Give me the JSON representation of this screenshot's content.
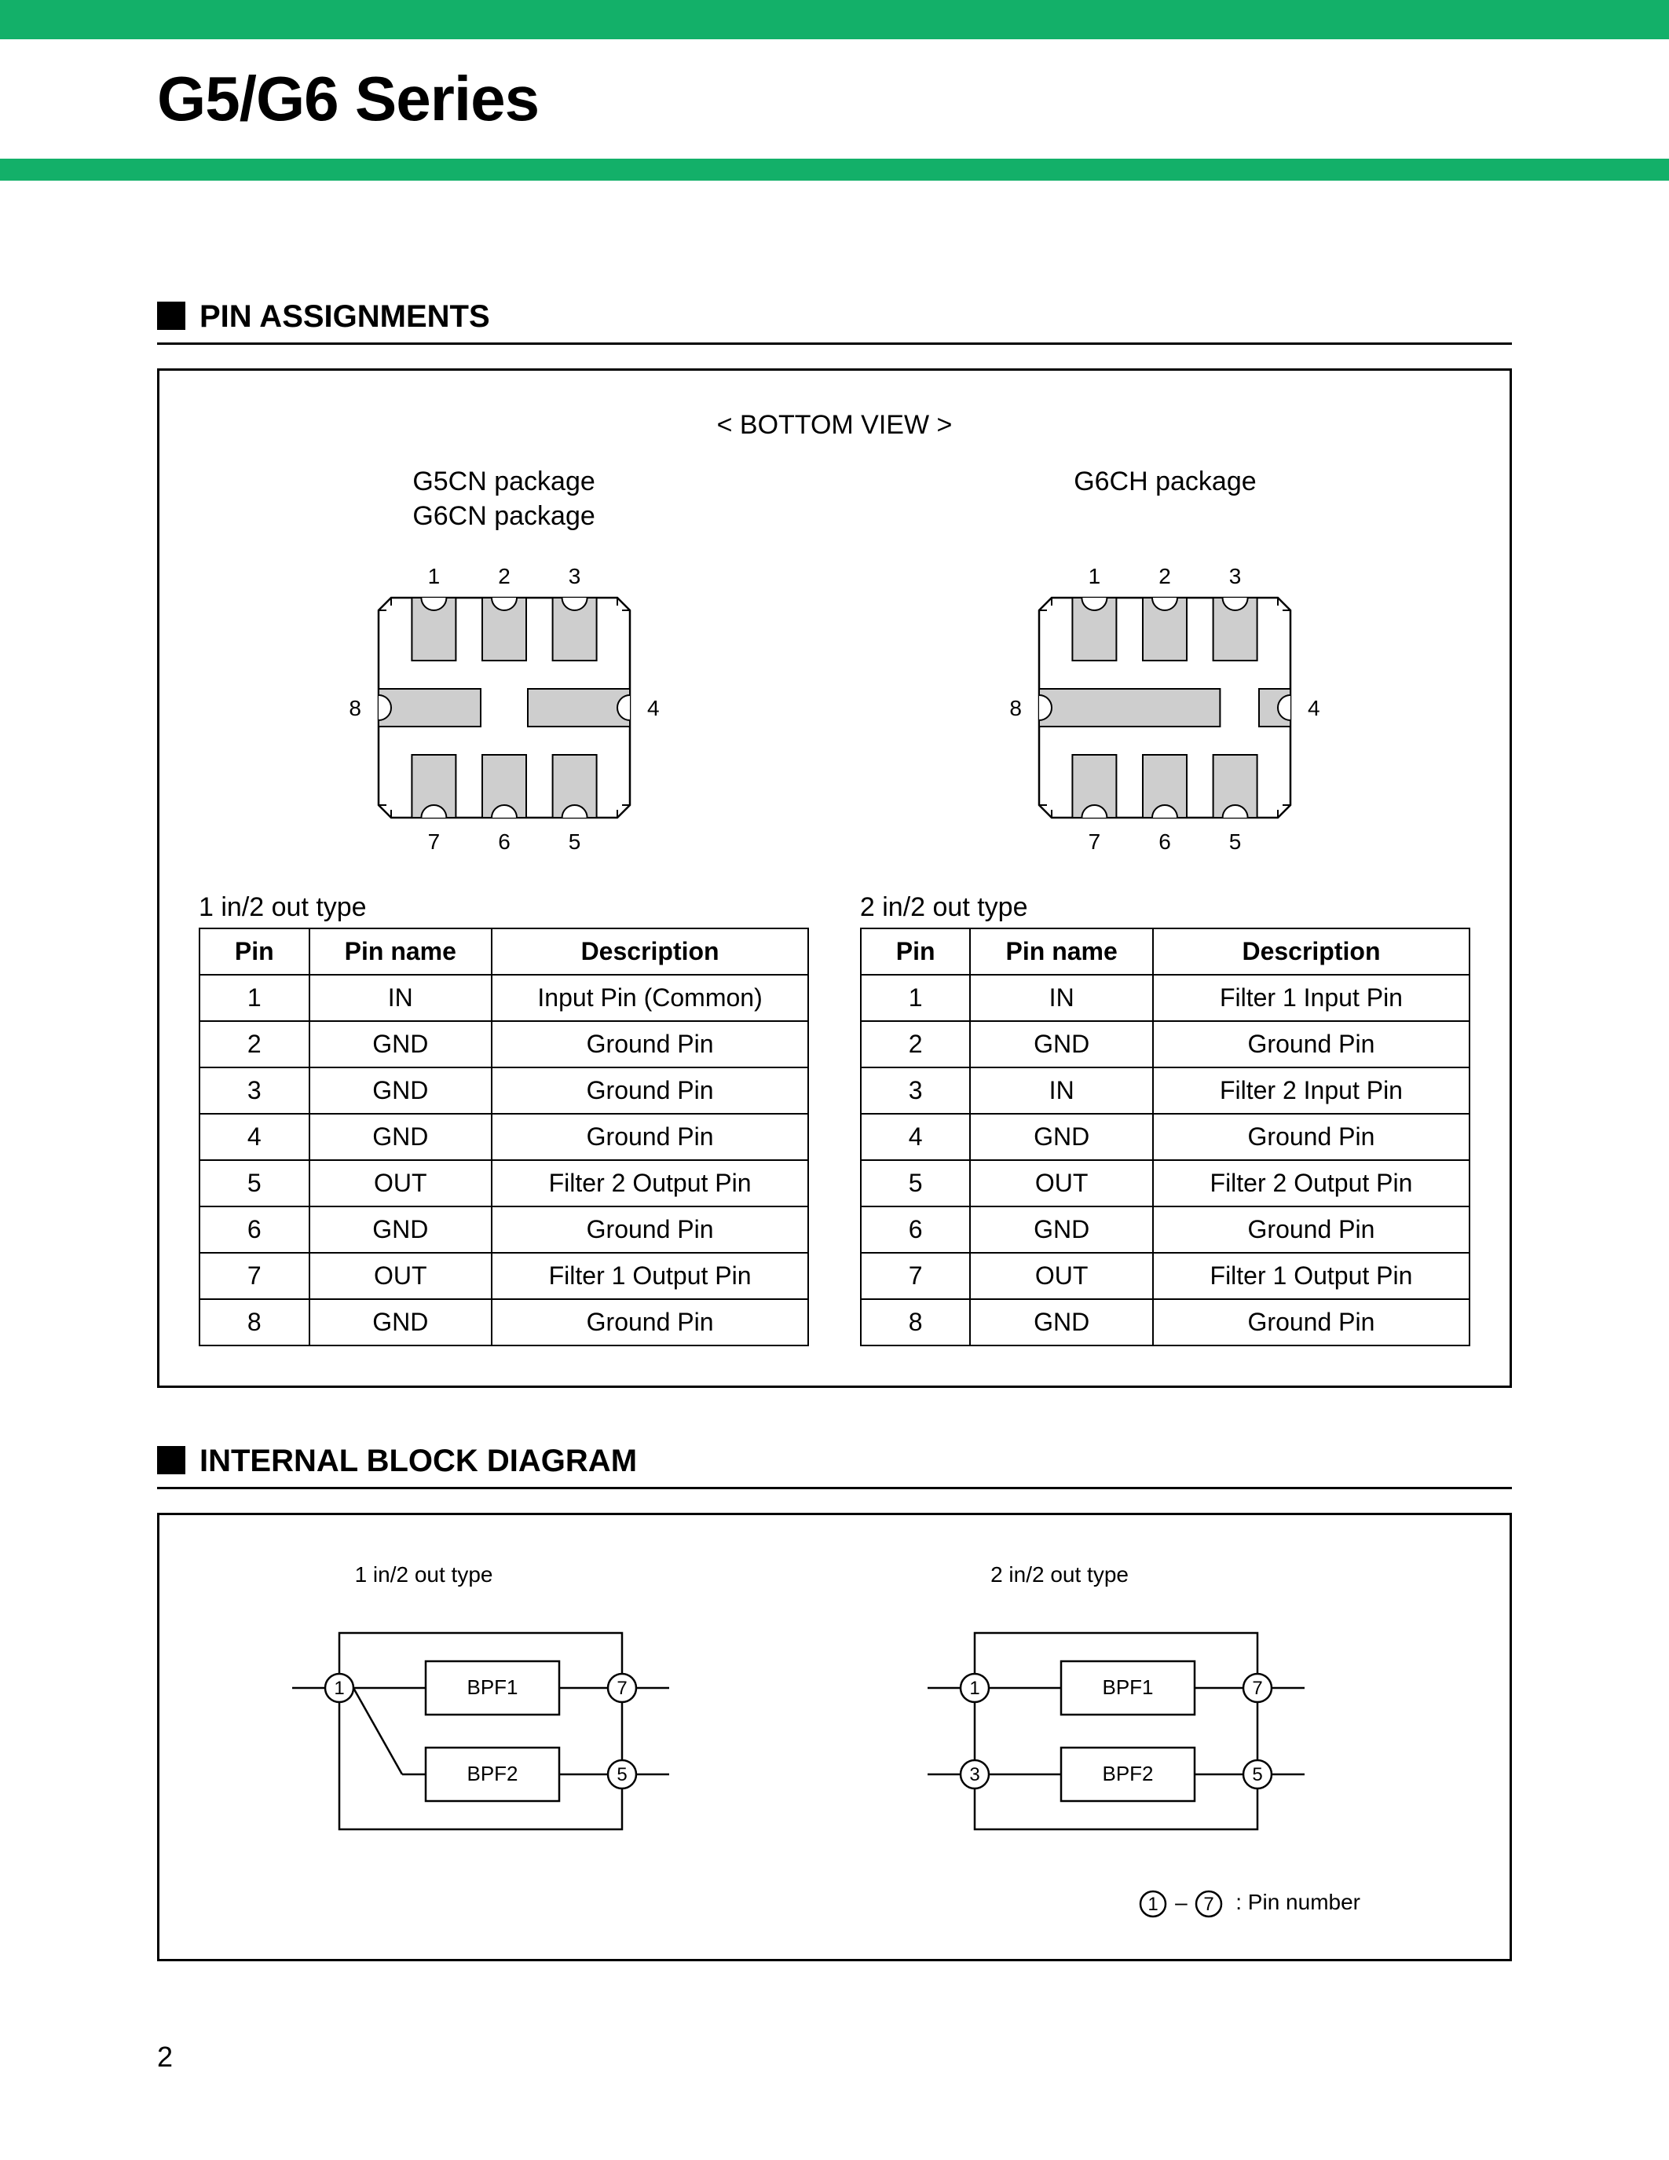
{
  "colors": {
    "accent": "#13b069",
    "pad_fill": "#cecece",
    "line": "#000000",
    "bg": "#ffffff"
  },
  "header": {
    "title": "G5/G6 Series"
  },
  "page_number": "2",
  "pin_section": {
    "heading": "PIN ASSIGNMENTS",
    "view_label": "< BOTTOM VIEW >",
    "packages": [
      {
        "name_lines": [
          "G5CN package",
          "G6CN package"
        ],
        "type": "g5cn",
        "pins_top": [
          "1",
          "2",
          "3"
        ],
        "pins_bot": [
          "7",
          "6",
          "5"
        ],
        "pin_left": "8",
        "pin_right": "4"
      },
      {
        "name_lines": [
          "G6CH package"
        ],
        "type": "g6ch",
        "pins_top": [
          "1",
          "2",
          "3"
        ],
        "pins_bot": [
          "7",
          "6",
          "5"
        ],
        "pin_left": "8",
        "pin_right": "4"
      }
    ],
    "tables": [
      {
        "caption": "1 in/2 out type",
        "columns": [
          "Pin",
          "Pin name",
          "Description"
        ],
        "rows": [
          [
            "1",
            "IN",
            "Input Pin (Common)"
          ],
          [
            "2",
            "GND",
            "Ground Pin"
          ],
          [
            "3",
            "GND",
            "Ground Pin"
          ],
          [
            "4",
            "GND",
            "Ground Pin"
          ],
          [
            "5",
            "OUT",
            "Filter 2 Output Pin"
          ],
          [
            "6",
            "GND",
            "Ground Pin"
          ],
          [
            "7",
            "OUT",
            "Filter 1 Output Pin"
          ],
          [
            "8",
            "GND",
            "Ground Pin"
          ]
        ]
      },
      {
        "caption": "2 in/2 out type",
        "columns": [
          "Pin",
          "Pin name",
          "Description"
        ],
        "rows": [
          [
            "1",
            "IN",
            "Filter 1 Input Pin"
          ],
          [
            "2",
            "GND",
            "Ground Pin"
          ],
          [
            "3",
            "IN",
            "Filter 2 Input Pin"
          ],
          [
            "4",
            "GND",
            "Ground Pin"
          ],
          [
            "5",
            "OUT",
            "Filter 2 Output Pin"
          ],
          [
            "6",
            "GND",
            "Ground Pin"
          ],
          [
            "7",
            "OUT",
            "Filter 1 Output Pin"
          ],
          [
            "8",
            "GND",
            "Ground Pin"
          ]
        ]
      }
    ]
  },
  "block_section": {
    "heading": "INTERNAL BLOCK DIAGRAM",
    "legend_text": ": Pin number",
    "diagrams": [
      {
        "caption": "1 in/2 out type",
        "mode": "shared_in",
        "bpf1": "BPF1",
        "bpf2": "BPF2",
        "pins": {
          "in1": "1",
          "out1": "7",
          "out2": "5"
        }
      },
      {
        "caption": "2 in/2 out type",
        "mode": "separate_in",
        "bpf1": "BPF1",
        "bpf2": "BPF2",
        "pins": {
          "in1": "1",
          "in2": "3",
          "out1": "7",
          "out2": "5"
        }
      }
    ]
  }
}
